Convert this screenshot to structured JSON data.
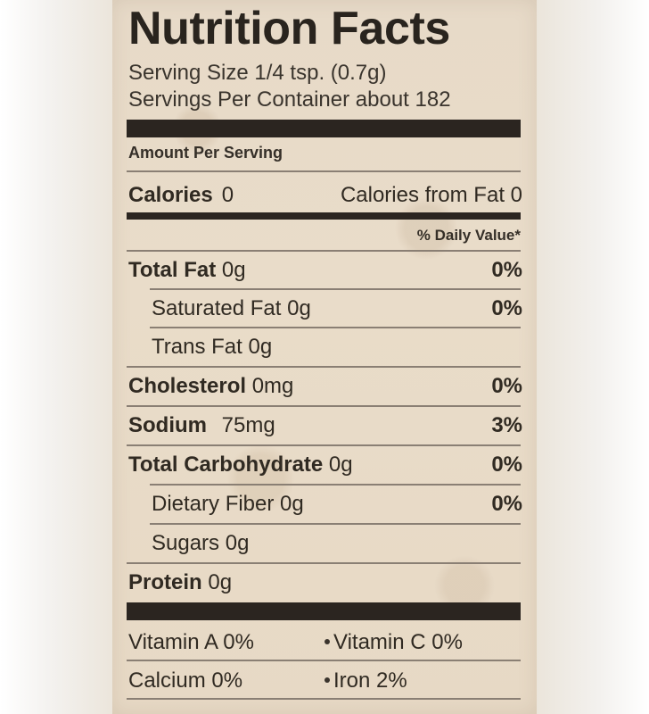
{
  "title": "Nutrition Facts",
  "serving": {
    "size": "Serving Size 1/4 tsp. (0.7g)",
    "per_container": "Servings Per Container about 182"
  },
  "amount_per_serving": "Amount Per Serving",
  "calories": {
    "label": "Calories",
    "value": "0",
    "from_fat": "Calories from Fat 0"
  },
  "daily_value_label": "% Daily Value*",
  "nutrients": [
    {
      "name": "Total Fat",
      "amount": "0g",
      "dv": "0%"
    },
    {
      "name": "Saturated Fat",
      "amount": "0g",
      "dv": "0%"
    },
    {
      "name": "Trans Fat",
      "amount": "0g",
      "dv": ""
    },
    {
      "name": "Cholesterol",
      "amount": "0mg",
      "dv": "0%"
    },
    {
      "name": "Sodium",
      "amount": "75mg",
      "dv": "3%"
    },
    {
      "name": "Total Carbohydrate",
      "amount": "0g",
      "dv": "0%"
    },
    {
      "name": "Dietary Fiber",
      "amount": "0g",
      "dv": "0%"
    },
    {
      "name": "Sugars",
      "amount": "0g",
      "dv": ""
    },
    {
      "name": "Protein",
      "amount": "0g",
      "dv": ""
    }
  ],
  "vitamins": [
    {
      "left": "Vitamin A 0%",
      "right": "Vitamin C 0%"
    },
    {
      "left": "Calcium 0%",
      "right": "Iron 2%"
    }
  ],
  "colors": {
    "label_background": "#e7dac8",
    "text": "#302a22",
    "bars": "#2b2520"
  }
}
